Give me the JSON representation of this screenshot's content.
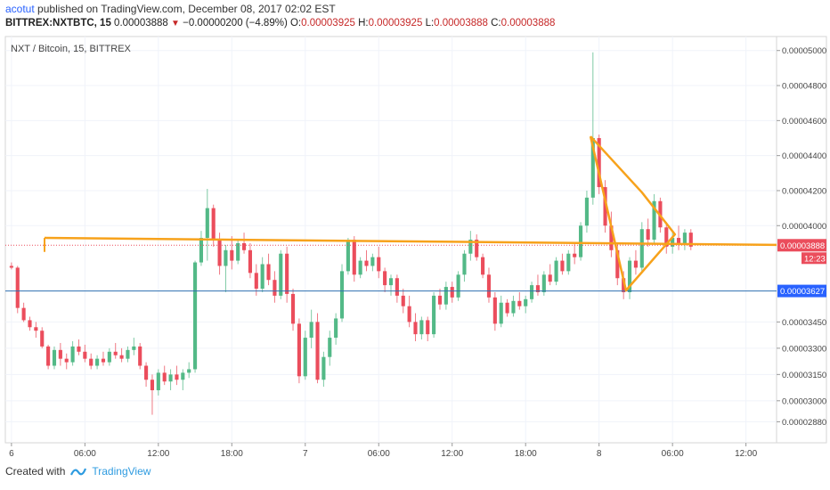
{
  "header": {
    "author": "acotut",
    "published_text": "published on TradingView.com, December 08, 2017 02:02 EST",
    "symbol_line": "BITTREX:NXTBTC, 15",
    "last": "0.00003888",
    "change": "−0.00000200 (−4.89%)",
    "open_label": "O:",
    "open": "0.00003925",
    "high_label": "H:",
    "high": "0.00003925",
    "low_label": "L:",
    "low": "0.00003888",
    "close_label": "C:",
    "close": "0.00003888"
  },
  "footer": {
    "created_with": "Created with",
    "brand": "TradingView"
  },
  "colors": {
    "up": "#53b987",
    "down": "#eb4d5c",
    "wick": "#9e9e9e",
    "drawing": "#f7a21b",
    "hline": "#2f6fb0",
    "price_tag": "#eb4d5c",
    "hline_tag": "#2962ff"
  },
  "chart_data": {
    "type": "candlestick",
    "title": "NXT / Bitcoin, 15, BITTREX",
    "ylim": [
      2.76e-05,
      5.08e-05
    ],
    "y_ticks": [
      "0.00005000",
      "0.00004800",
      "0.00004600",
      "0.00004400",
      "0.00004200",
      "0.00004000",
      "0.00003888",
      "0.00003450",
      "0.00003300",
      "0.00003150",
      "0.00003000",
      "0.00002880"
    ],
    "y_tick_values": [
      5e-05,
      4.8e-05,
      4.6e-05,
      4.4e-05,
      4.2e-05,
      4e-05,
      3.888e-05,
      3.45e-05,
      3.3e-05,
      3.15e-05,
      3e-05,
      2.88e-05
    ],
    "x_ticks": [
      "6",
      "06:00",
      "12:00",
      "18:00",
      "7",
      "06:00",
      "12:00",
      "18:00",
      "8",
      "06:00",
      "12:00"
    ],
    "x_tick_hours": [
      0,
      6,
      12,
      18,
      24,
      30,
      36,
      42,
      48,
      54,
      60
    ],
    "x_range_hours": [
      -0.5,
      62.5
    ],
    "last_price": 3.888e-05,
    "last_price_label": "0.00003888",
    "countdown": "12:23",
    "horizontal_line": 3.627e-05,
    "horizontal_line_label": "0.00003627",
    "drawings": [
      {
        "name": "triangle-upper",
        "points": [
          [
            57.2,
            4.51e-05
          ],
          [
            56.7,
            4.22e-05
          ]
        ]
      },
      {
        "name": "triangle-lower",
        "points": [
          [
            50.2,
            3.63e-05
          ],
          [
            54.9,
            3.87e-05
          ]
        ]
      }
    ],
    "trend_line": {
      "name": "support-line",
      "points": [
        [
          2.7,
          3.93e-05
        ],
        [
          62.5,
          3.89e-05
        ]
      ]
    },
    "triangle": {
      "points": [
        [
          47.3,
          4.51e-05
        ],
        [
          51.5,
          4.19e-05
        ],
        [
          54.2,
          3.95e-05
        ],
        [
          50.2,
          3.63e-05
        ],
        [
          47.3,
          4.51e-05
        ]
      ]
    },
    "candles": [
      {
        "t": 0.0,
        "o": 3.77e-05,
        "h": 3.79e-05,
        "l": 3.75e-05,
        "c": 3.76e-05
      },
      {
        "t": 0.5,
        "o": 3.76e-05,
        "h": 3.77e-05,
        "l": 3.5e-05,
        "c": 3.53e-05
      },
      {
        "t": 1.0,
        "o": 3.53e-05,
        "h": 3.56e-05,
        "l": 3.45e-05,
        "c": 3.46e-05
      },
      {
        "t": 1.5,
        "o": 3.46e-05,
        "h": 3.48e-05,
        "l": 3.4e-05,
        "c": 3.42e-05
      },
      {
        "t": 2.0,
        "o": 3.42e-05,
        "h": 3.45e-05,
        "l": 3.36e-05,
        "c": 3.4e-05
      },
      {
        "t": 2.5,
        "o": 3.4e-05,
        "h": 3.42e-05,
        "l": 3.3e-05,
        "c": 3.31e-05
      },
      {
        "t": 3.0,
        "o": 3.31e-05,
        "h": 3.32e-05,
        "l": 3.18e-05,
        "c": 3.2e-05
      },
      {
        "t": 3.5,
        "o": 3.2e-05,
        "h": 3.31e-05,
        "l": 3.18e-05,
        "c": 3.29e-05
      },
      {
        "t": 4.0,
        "o": 3.29e-05,
        "h": 3.33e-05,
        "l": 3.2e-05,
        "c": 3.24e-05
      },
      {
        "t": 4.5,
        "o": 3.24e-05,
        "h": 3.27e-05,
        "l": 3.18e-05,
        "c": 3.22e-05
      },
      {
        "t": 5.0,
        "o": 3.22e-05,
        "h": 3.34e-05,
        "l": 3.2e-05,
        "c": 3.31e-05
      },
      {
        "t": 5.5,
        "o": 3.31e-05,
        "h": 3.35e-05,
        "l": 3.26e-05,
        "c": 3.28e-05
      },
      {
        "t": 6.0,
        "o": 3.28e-05,
        "h": 3.32e-05,
        "l": 3.22e-05,
        "c": 3.24e-05
      },
      {
        "t": 6.5,
        "o": 3.24e-05,
        "h": 3.27e-05,
        "l": 3.18e-05,
        "c": 3.2e-05
      },
      {
        "t": 7.0,
        "o": 3.2e-05,
        "h": 3.26e-05,
        "l": 3.18e-05,
        "c": 3.24e-05
      },
      {
        "t": 7.5,
        "o": 3.24e-05,
        "h": 3.28e-05,
        "l": 3.2e-05,
        "c": 3.22e-05
      },
      {
        "t": 8.0,
        "o": 3.22e-05,
        "h": 3.3e-05,
        "l": 3.2e-05,
        "c": 3.28e-05
      },
      {
        "t": 8.5,
        "o": 3.28e-05,
        "h": 3.33e-05,
        "l": 3.24e-05,
        "c": 3.26e-05
      },
      {
        "t": 9.0,
        "o": 3.26e-05,
        "h": 3.3e-05,
        "l": 3.22e-05,
        "c": 3.24e-05
      },
      {
        "t": 9.5,
        "o": 3.24e-05,
        "h": 3.31e-05,
        "l": 3.22e-05,
        "c": 3.29e-05
      },
      {
        "t": 10.0,
        "o": 3.29e-05,
        "h": 3.36e-05,
        "l": 3.26e-05,
        "c": 3.31e-05
      },
      {
        "t": 10.5,
        "o": 3.31e-05,
        "h": 3.33e-05,
        "l": 3.18e-05,
        "c": 3.2e-05
      },
      {
        "t": 11.0,
        "o": 3.2e-05,
        "h": 3.22e-05,
        "l": 3.08e-05,
        "c": 3.12e-05
      },
      {
        "t": 11.5,
        "o": 3.12e-05,
        "h": 3.15e-05,
        "l": 2.92e-05,
        "c": 3.06e-05
      },
      {
        "t": 12.0,
        "o": 3.06e-05,
        "h": 3.18e-05,
        "l": 3.03e-05,
        "c": 3.16e-05
      },
      {
        "t": 12.5,
        "o": 3.16e-05,
        "h": 3.2e-05,
        "l": 3.09e-05,
        "c": 3.11e-05
      },
      {
        "t": 13.0,
        "o": 3.11e-05,
        "h": 3.18e-05,
        "l": 3.06e-05,
        "c": 3.15e-05
      },
      {
        "t": 13.5,
        "o": 3.15e-05,
        "h": 3.2e-05,
        "l": 3.09e-05,
        "c": 3.12e-05
      },
      {
        "t": 14.0,
        "o": 3.12e-05,
        "h": 3.18e-05,
        "l": 3.06e-05,
        "c": 3.16e-05
      },
      {
        "t": 14.5,
        "o": 3.16e-05,
        "h": 3.22e-05,
        "l": 3.13e-05,
        "c": 3.18e-05
      },
      {
        "t": 15.0,
        "o": 3.18e-05,
        "h": 3.8e-05,
        "l": 3.16e-05,
        "c": 3.79e-05
      },
      {
        "t": 15.5,
        "o": 3.79e-05,
        "h": 3.97e-05,
        "l": 3.77e-05,
        "c": 3.93e-05
      },
      {
        "t": 16.0,
        "o": 3.93e-05,
        "h": 4.21e-05,
        "l": 3.8e-05,
        "c": 4.1e-05
      },
      {
        "t": 16.5,
        "o": 4.1e-05,
        "h": 4.12e-05,
        "l": 3.88e-05,
        "c": 3.92e-05
      },
      {
        "t": 17.0,
        "o": 3.92e-05,
        "h": 3.96e-05,
        "l": 3.72e-05,
        "c": 3.77e-05
      },
      {
        "t": 17.5,
        "o": 3.77e-05,
        "h": 3.89e-05,
        "l": 3.62e-05,
        "c": 3.86e-05
      },
      {
        "t": 18.0,
        "o": 3.86e-05,
        "h": 3.94e-05,
        "l": 3.75e-05,
        "c": 3.8e-05
      },
      {
        "t": 18.5,
        "o": 3.8e-05,
        "h": 3.92e-05,
        "l": 3.78e-05,
        "c": 3.9e-05
      },
      {
        "t": 19.0,
        "o": 3.9e-05,
        "h": 3.96e-05,
        "l": 3.84e-05,
        "c": 3.86e-05
      },
      {
        "t": 19.5,
        "o": 3.86e-05,
        "h": 3.9e-05,
        "l": 3.7e-05,
        "c": 3.73e-05
      },
      {
        "t": 20.0,
        "o": 3.73e-05,
        "h": 3.78e-05,
        "l": 3.6e-05,
        "c": 3.64e-05
      },
      {
        "t": 20.5,
        "o": 3.64e-05,
        "h": 3.82e-05,
        "l": 3.62e-05,
        "c": 3.78e-05
      },
      {
        "t": 21.0,
        "o": 3.78e-05,
        "h": 3.84e-05,
        "l": 3.66e-05,
        "c": 3.69e-05
      },
      {
        "t": 21.5,
        "o": 3.69e-05,
        "h": 3.74e-05,
        "l": 3.56e-05,
        "c": 3.6e-05
      },
      {
        "t": 22.0,
        "o": 3.6e-05,
        "h": 3.86e-05,
        "l": 3.58e-05,
        "c": 3.84e-05
      },
      {
        "t": 22.5,
        "o": 3.84e-05,
        "h": 3.88e-05,
        "l": 3.56e-05,
        "c": 3.61e-05
      },
      {
        "t": 23.0,
        "o": 3.61e-05,
        "h": 3.64e-05,
        "l": 3.4e-05,
        "c": 3.44e-05
      },
      {
        "t": 23.5,
        "o": 3.44e-05,
        "h": 3.47e-05,
        "l": 3.1e-05,
        "c": 3.14e-05
      },
      {
        "t": 24.0,
        "o": 3.14e-05,
        "h": 3.4e-05,
        "l": 3.12e-05,
        "c": 3.36e-05
      },
      {
        "t": 24.5,
        "o": 3.36e-05,
        "h": 3.52e-05,
        "l": 3.3e-05,
        "c": 3.45e-05
      },
      {
        "t": 25.0,
        "o": 3.45e-05,
        "h": 3.5e-05,
        "l": 3.1e-05,
        "c": 3.12e-05
      },
      {
        "t": 25.5,
        "o": 3.12e-05,
        "h": 3.28e-05,
        "l": 3.08e-05,
        "c": 3.25e-05
      },
      {
        "t": 26.0,
        "o": 3.25e-05,
        "h": 3.4e-05,
        "l": 3.2e-05,
        "c": 3.36e-05
      },
      {
        "t": 26.5,
        "o": 3.36e-05,
        "h": 3.5e-05,
        "l": 3.32e-05,
        "c": 3.47e-05
      },
      {
        "t": 27.0,
        "o": 3.47e-05,
        "h": 3.78e-05,
        "l": 3.45e-05,
        "c": 3.74e-05
      },
      {
        "t": 27.5,
        "o": 3.74e-05,
        "h": 3.93e-05,
        "l": 3.72e-05,
        "c": 3.92e-05
      },
      {
        "t": 28.0,
        "o": 3.92e-05,
        "h": 3.94e-05,
        "l": 3.68e-05,
        "c": 3.72e-05
      },
      {
        "t": 28.5,
        "o": 3.72e-05,
        "h": 3.82e-05,
        "l": 3.7e-05,
        "c": 3.8e-05
      },
      {
        "t": 29.0,
        "o": 3.8e-05,
        "h": 3.86e-05,
        "l": 3.74e-05,
        "c": 3.77e-05
      },
      {
        "t": 29.5,
        "o": 3.77e-05,
        "h": 3.84e-05,
        "l": 3.74e-05,
        "c": 3.82e-05
      },
      {
        "t": 30.0,
        "o": 3.82e-05,
        "h": 3.88e-05,
        "l": 3.7e-05,
        "c": 3.74e-05
      },
      {
        "t": 30.5,
        "o": 3.74e-05,
        "h": 3.76e-05,
        "l": 3.62e-05,
        "c": 3.66e-05
      },
      {
        "t": 31.0,
        "o": 3.66e-05,
        "h": 3.72e-05,
        "l": 3.6e-05,
        "c": 3.7e-05
      },
      {
        "t": 31.5,
        "o": 3.7e-05,
        "h": 3.72e-05,
        "l": 3.56e-05,
        "c": 3.6e-05
      },
      {
        "t": 32.0,
        "o": 3.6e-05,
        "h": 3.64e-05,
        "l": 3.5e-05,
        "c": 3.54e-05
      },
      {
        "t": 32.5,
        "o": 3.54e-05,
        "h": 3.6e-05,
        "l": 3.42e-05,
        "c": 3.45e-05
      },
      {
        "t": 33.0,
        "o": 3.45e-05,
        "h": 3.5e-05,
        "l": 3.34e-05,
        "c": 3.38e-05
      },
      {
        "t": 33.5,
        "o": 3.38e-05,
        "h": 3.48e-05,
        "l": 3.35e-05,
        "c": 3.46e-05
      },
      {
        "t": 34.0,
        "o": 3.46e-05,
        "h": 3.48e-05,
        "l": 3.34e-05,
        "c": 3.38e-05
      },
      {
        "t": 34.5,
        "o": 3.38e-05,
        "h": 3.62e-05,
        "l": 3.36e-05,
        "c": 3.6e-05
      },
      {
        "t": 35.0,
        "o": 3.6e-05,
        "h": 3.64e-05,
        "l": 3.52e-05,
        "c": 3.55e-05
      },
      {
        "t": 35.5,
        "o": 3.55e-05,
        "h": 3.68e-05,
        "l": 3.52e-05,
        "c": 3.65e-05
      },
      {
        "t": 36.0,
        "o": 3.65e-05,
        "h": 3.68e-05,
        "l": 3.56e-05,
        "c": 3.59e-05
      },
      {
        "t": 36.5,
        "o": 3.59e-05,
        "h": 3.74e-05,
        "l": 3.57e-05,
        "c": 3.72e-05
      },
      {
        "t": 37.0,
        "o": 3.72e-05,
        "h": 3.86e-05,
        "l": 3.68e-05,
        "c": 3.84e-05
      },
      {
        "t": 37.5,
        "o": 3.84e-05,
        "h": 3.97e-05,
        "l": 3.8e-05,
        "c": 3.92e-05
      },
      {
        "t": 38.0,
        "o": 3.92e-05,
        "h": 3.95e-05,
        "l": 3.8e-05,
        "c": 3.82e-05
      },
      {
        "t": 38.5,
        "o": 3.82e-05,
        "h": 3.84e-05,
        "l": 3.7e-05,
        "c": 3.72e-05
      },
      {
        "t": 39.0,
        "o": 3.72e-05,
        "h": 3.76e-05,
        "l": 3.56e-05,
        "c": 3.59e-05
      },
      {
        "t": 39.5,
        "o": 3.59e-05,
        "h": 3.62e-05,
        "l": 3.4e-05,
        "c": 3.44e-05
      },
      {
        "t": 40.0,
        "o": 3.44e-05,
        "h": 3.6e-05,
        "l": 3.42e-05,
        "c": 3.56e-05
      },
      {
        "t": 40.5,
        "o": 3.56e-05,
        "h": 3.58e-05,
        "l": 3.48e-05,
        "c": 3.5e-05
      },
      {
        "t": 41.0,
        "o": 3.5e-05,
        "h": 3.6e-05,
        "l": 3.48e-05,
        "c": 3.57e-05
      },
      {
        "t": 41.5,
        "o": 3.57e-05,
        "h": 3.62e-05,
        "l": 3.52e-05,
        "c": 3.54e-05
      },
      {
        "t": 42.0,
        "o": 3.54e-05,
        "h": 3.6e-05,
        "l": 3.5e-05,
        "c": 3.58e-05
      },
      {
        "t": 42.5,
        "o": 3.58e-05,
        "h": 3.68e-05,
        "l": 3.56e-05,
        "c": 3.66e-05
      },
      {
        "t": 43.0,
        "o": 3.66e-05,
        "h": 3.72e-05,
        "l": 3.6e-05,
        "c": 3.62e-05
      },
      {
        "t": 43.5,
        "o": 3.62e-05,
        "h": 3.74e-05,
        "l": 3.6e-05,
        "c": 3.72e-05
      },
      {
        "t": 44.0,
        "o": 3.72e-05,
        "h": 3.78e-05,
        "l": 3.66e-05,
        "c": 3.68e-05
      },
      {
        "t": 44.5,
        "o": 3.68e-05,
        "h": 3.82e-05,
        "l": 3.66e-05,
        "c": 3.8e-05
      },
      {
        "t": 45.0,
        "o": 3.8e-05,
        "h": 3.84e-05,
        "l": 3.72e-05,
        "c": 3.74e-05
      },
      {
        "t": 45.5,
        "o": 3.74e-05,
        "h": 3.86e-05,
        "l": 3.72e-05,
        "c": 3.84e-05
      },
      {
        "t": 46.0,
        "o": 3.84e-05,
        "h": 3.9e-05,
        "l": 3.78e-05,
        "c": 3.82e-05
      },
      {
        "t": 46.5,
        "o": 3.82e-05,
        "h": 4.02e-05,
        "l": 3.8e-05,
        "c": 4e-05
      },
      {
        "t": 47.0,
        "o": 4e-05,
        "h": 4.2e-05,
        "l": 3.96e-05,
        "c": 4.16e-05
      },
      {
        "t": 47.5,
        "o": 4.16e-05,
        "h": 4.99e-05,
        "l": 4.12e-05,
        "c": 4.5e-05
      },
      {
        "t": 48.0,
        "o": 4.5e-05,
        "h": 4.52e-05,
        "l": 4.18e-05,
        "c": 4.22e-05
      },
      {
        "t": 48.5,
        "o": 4.22e-05,
        "h": 4.26e-05,
        "l": 3.96e-05,
        "c": 4e-05
      },
      {
        "t": 49.0,
        "o": 4e-05,
        "h": 4.08e-05,
        "l": 3.82e-05,
        "c": 3.86e-05
      },
      {
        "t": 49.5,
        "o": 3.86e-05,
        "h": 3.9e-05,
        "l": 3.66e-05,
        "c": 3.7e-05
      },
      {
        "t": 50.0,
        "o": 3.7e-05,
        "h": 3.74e-05,
        "l": 3.58e-05,
        "c": 3.62e-05
      },
      {
        "t": 50.5,
        "o": 3.62e-05,
        "h": 3.82e-05,
        "l": 3.58e-05,
        "c": 3.8e-05
      },
      {
        "t": 51.0,
        "o": 3.8e-05,
        "h": 3.86e-05,
        "l": 3.72e-05,
        "c": 3.76e-05
      },
      {
        "t": 51.5,
        "o": 3.76e-05,
        "h": 4.02e-05,
        "l": 3.74e-05,
        "c": 3.98e-05
      },
      {
        "t": 52.0,
        "o": 3.98e-05,
        "h": 4.04e-05,
        "l": 3.88e-05,
        "c": 3.92e-05
      },
      {
        "t": 52.5,
        "o": 3.92e-05,
        "h": 4.18e-05,
        "l": 3.9e-05,
        "c": 4.14e-05
      },
      {
        "t": 53.0,
        "o": 4.14e-05,
        "h": 4.16e-05,
        "l": 3.96e-05,
        "c": 3.99e-05
      },
      {
        "t": 53.5,
        "o": 3.99e-05,
        "h": 4.02e-05,
        "l": 3.84e-05,
        "c": 3.88e-05
      },
      {
        "t": 54.0,
        "o": 3.88e-05,
        "h": 3.96e-05,
        "l": 3.84e-05,
        "c": 3.93e-05
      },
      {
        "t": 54.5,
        "o": 3.93e-05,
        "h": 4e-05,
        "l": 3.86e-05,
        "c": 3.89e-05
      },
      {
        "t": 55.0,
        "o": 3.89e-05,
        "h": 3.98e-05,
        "l": 3.86e-05,
        "c": 3.96e-05
      },
      {
        "t": 55.5,
        "o": 3.96e-05,
        "h": 3.98e-05,
        "l": 3.86e-05,
        "c": 3.88e-05
      }
    ]
  }
}
